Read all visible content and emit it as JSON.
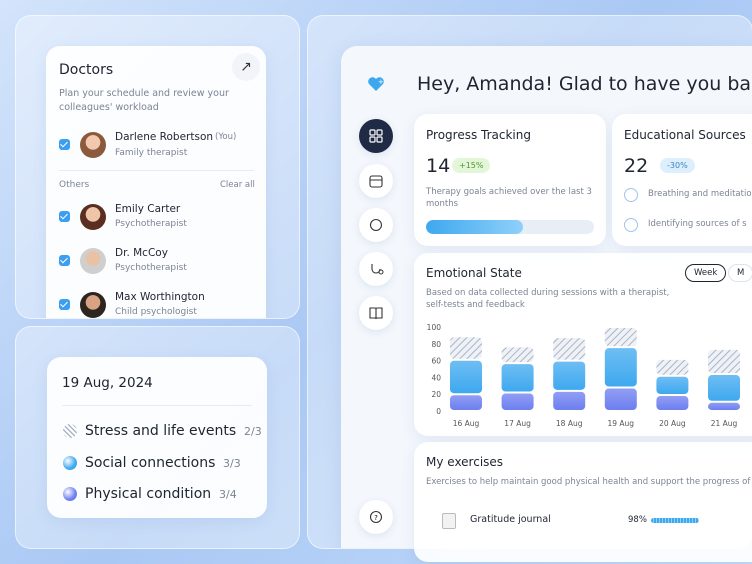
{
  "doctors": {
    "title": "Doctors",
    "subtitle": "Plan your schedule and review your colleagues' workload",
    "me": {
      "name": "Darlene Robertson",
      "tag": "(You)",
      "role": "Family therapist"
    },
    "others_label": "Others",
    "clear": "Clear all",
    "others": [
      {
        "name": "Emily Carter",
        "role": "Psychotherapist"
      },
      {
        "name": "Dr. McCoy",
        "role": "Psychotherapist"
      },
      {
        "name": "Max Worthington",
        "role": "Child psychologist"
      }
    ]
  },
  "greeting": "Hey, Amanda! Glad to have you back",
  "progress": {
    "title": "Progress Tracking",
    "value": 14,
    "change": "+15%",
    "description": "Therapy goals achieved over the last 3 months",
    "fill": 58
  },
  "education": {
    "title": "Educational Sources",
    "value": 22,
    "change": "-30%",
    "items": [
      "Breathing and meditatio",
      "Identifying sources of s"
    ]
  },
  "chart_data": {
    "type": "bar",
    "stacked": true,
    "title": "Emotional State",
    "tabs": [
      "Week",
      "M"
    ],
    "subtitle": "Based on data collected during sessions with a therapist, self-tests and feedback",
    "date": "19 Aug, 2024",
    "categories": [
      "16 Aug",
      "17 Aug",
      "18 Aug",
      "19 Aug",
      "20 Aug",
      "21 Aug"
    ],
    "series": [
      {
        "name": "Stress and life events",
        "count": "2/3",
        "color": "#aab4c8",
        "pattern": "hatch",
        "values": [
          28,
          20,
          28,
          24,
          20,
          30
        ]
      },
      {
        "name": "Social connections",
        "count": "3/3",
        "color": "#3ea8ef",
        "values": [
          41,
          35,
          36,
          48,
          23,
          33
        ]
      },
      {
        "name": "Physical condition",
        "count": "3/4",
        "color": "#6d7ef0",
        "values": [
          20,
          22,
          24,
          28,
          19,
          11
        ]
      }
    ],
    "ylim": [
      0,
      100
    ],
    "yticks": [
      0,
      20,
      40,
      60,
      80,
      100
    ]
  },
  "exercises": {
    "title": "My exercises",
    "description": "Exercises to help maintain good physical health and support the progress of thera",
    "items": [
      {
        "name": "Gratitude journal",
        "progress": "98%"
      }
    ]
  }
}
